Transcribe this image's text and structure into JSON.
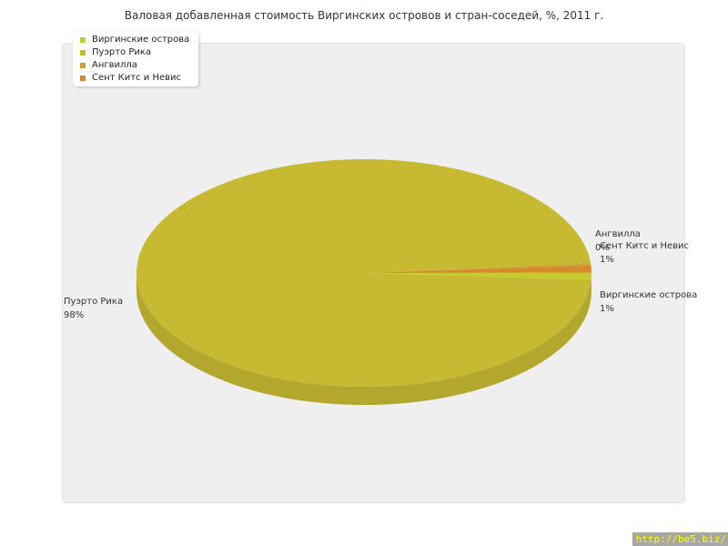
{
  "chart_data": {
    "type": "pie",
    "title": "Валовая добавленная стоимость Виргинских островов и стран-соседей, %, 2011 г.",
    "slices": [
      {
        "name": "Виргинские острова",
        "value": 1,
        "value_label": "1%",
        "color": "#c7cc2e"
      },
      {
        "name": "Пуэрто Рика",
        "value": 98,
        "value_label": "98%",
        "color": "#c8b932"
      },
      {
        "name": "Ангвилла",
        "value": 0,
        "value_label": "0%",
        "color": "#c9a430"
      },
      {
        "name": "Сент Китс и Невис",
        "value": 1,
        "value_label": "1%",
        "color": "#d68a2a"
      }
    ],
    "legend_position": "top-left",
    "style": "3d-pie"
  },
  "watermark": "http://be5.biz/"
}
